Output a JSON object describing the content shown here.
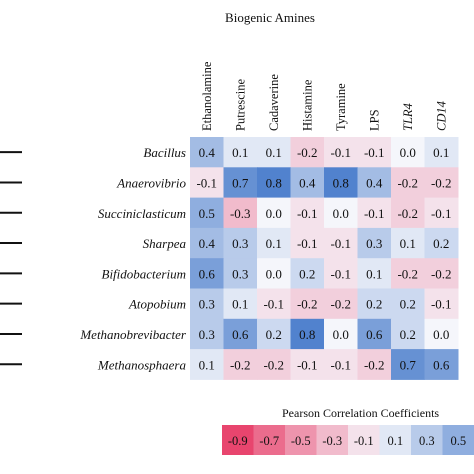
{
  "chart_data": {
    "type": "heatmap",
    "title": "Biogenic Amines",
    "columns": [
      {
        "label": "Ethanolamine",
        "italic": false
      },
      {
        "label": "Putrescine",
        "italic": false
      },
      {
        "label": "Cadaverine",
        "italic": false
      },
      {
        "label": "Histamine",
        "italic": false
      },
      {
        "label": "Tyramine",
        "italic": false
      },
      {
        "label": "LPS",
        "italic": false
      },
      {
        "label": "TLR4",
        "italic": true
      },
      {
        "label": "CD14",
        "italic": true
      }
    ],
    "rows": [
      "Bacillus",
      "Anaerovibrio",
      "Succiniclasticum",
      "Sharpea",
      "Bifidobacterium",
      "Atopobium",
      "Methanobrevibacter",
      "Methanosphaera"
    ],
    "values": [
      [
        0.4,
        0.1,
        0.1,
        -0.2,
        -0.1,
        -0.1,
        0.0,
        0.1
      ],
      [
        -0.1,
        0.7,
        0.8,
        0.4,
        0.8,
        0.4,
        -0.2,
        -0.2
      ],
      [
        0.5,
        -0.3,
        0.0,
        -0.1,
        0.0,
        -0.1,
        -0.2,
        -0.1
      ],
      [
        0.4,
        0.3,
        0.1,
        -0.1,
        -0.1,
        0.3,
        0.1,
        0.2
      ],
      [
        0.6,
        0.3,
        0.0,
        0.2,
        -0.1,
        0.1,
        -0.2,
        -0.2
      ],
      [
        0.3,
        0.1,
        -0.1,
        -0.2,
        -0.2,
        0.2,
        0.2,
        -0.1
      ],
      [
        0.3,
        0.6,
        0.2,
        0.8,
        0.0,
        0.6,
        0.2,
        0.0
      ],
      [
        0.1,
        -0.2,
        -0.2,
        -0.1,
        -0.1,
        -0.2,
        0.7,
        0.6
      ]
    ],
    "colorbar": {
      "title": "Pearson Correlation Coefficients",
      "values": [
        -0.9,
        -0.7,
        -0.5,
        -0.3,
        -0.1,
        0.1,
        0.3,
        0.5
      ]
    },
    "colors": {
      "negative": "#e8456e",
      "neutral": "#f5f6fb",
      "positive": "#3d74c8"
    }
  }
}
